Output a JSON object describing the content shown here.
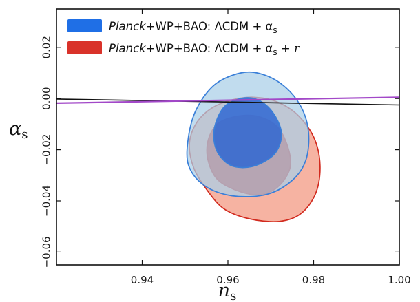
{
  "chart_data": {
    "type": "contour",
    "xlabel": {
      "base": "n",
      "sub": "s"
    },
    "ylabel": {
      "base": "α",
      "sub": "s"
    },
    "xlim": [
      0.92,
      1.0
    ],
    "ylim": [
      -0.065,
      0.035
    ],
    "xticks": [
      {
        "value": 0.94,
        "label": "0.94"
      },
      {
        "value": 0.96,
        "label": "0.96"
      },
      {
        "value": 0.98,
        "label": "0.98"
      },
      {
        "value": 1.0,
        "label": "1.00"
      }
    ],
    "yticks": [
      {
        "value": -0.06,
        "label": "−0.06"
      },
      {
        "value": -0.04,
        "label": "−0.04"
      },
      {
        "value": -0.02,
        "label": "−0.02"
      },
      {
        "value": 0.0,
        "label": "0.00"
      },
      {
        "value": 0.02,
        "label": "0.02"
      }
    ],
    "legend_placement": "top-left",
    "series": [
      {
        "legend": {
          "italic": "Planck",
          "rest": "+WP+BAO: ΛCDM + α",
          "sub": "s",
          "suffix": ""
        },
        "color_outer": "#f6b3a2",
        "color_inner": "#d63a2c",
        "edge_color": "#d22a1e",
        "outer_contour": [
          [
            0.9548,
            -0.035
          ],
          [
            0.952,
            -0.027
          ],
          [
            0.951,
            -0.018
          ],
          [
            0.9525,
            -0.01
          ],
          [
            0.956,
            -0.004
          ],
          [
            0.961,
            -0.0005
          ],
          [
            0.966,
            0.0005
          ],
          [
            0.971,
            -0.001
          ],
          [
            0.976,
            -0.006
          ],
          [
            0.98,
            -0.015
          ],
          [
            0.9815,
            -0.026
          ],
          [
            0.9805,
            -0.037
          ],
          [
            0.977,
            -0.045
          ],
          [
            0.972,
            -0.048
          ],
          [
            0.965,
            -0.047
          ],
          [
            0.959,
            -0.043
          ]
        ],
        "inner_contour": [
          [
            0.9578,
            -0.032
          ],
          [
            0.9555,
            -0.025
          ],
          [
            0.9553,
            -0.017
          ],
          [
            0.9575,
            -0.01
          ],
          [
            0.962,
            -0.007
          ],
          [
            0.967,
            -0.007
          ],
          [
            0.9715,
            -0.011
          ],
          [
            0.974,
            -0.019
          ],
          [
            0.9745,
            -0.027
          ],
          [
            0.972,
            -0.034
          ],
          [
            0.968,
            -0.0375
          ],
          [
            0.963,
            -0.0365
          ]
        ]
      },
      {
        "legend": {
          "italic": "Planck",
          "rest": "+WP+BAO: ΛCDM + α",
          "sub": "s",
          "suffix": ""
        },
        "color_outer": "#a9cfe8",
        "color_inner": "#2a64d3",
        "edge_color": "#3a7fd8",
        "outer_contour": [
          [
            0.9545,
            -0.034
          ],
          [
            0.9508,
            -0.026
          ],
          [
            0.9508,
            -0.015
          ],
          [
            0.9527,
            -0.004
          ],
          [
            0.957,
            0.0055
          ],
          [
            0.963,
            0.01
          ],
          [
            0.968,
            0.0095
          ],
          [
            0.973,
            0.005
          ],
          [
            0.977,
            -0.003
          ],
          [
            0.9788,
            -0.013
          ],
          [
            0.9782,
            -0.024
          ],
          [
            0.975,
            -0.032
          ],
          [
            0.969,
            -0.0375
          ],
          [
            0.961,
            -0.038
          ]
        ],
        "inner_contour": [
          [
            0.96,
            -0.0255
          ],
          [
            0.9573,
            -0.02
          ],
          [
            0.9568,
            -0.012
          ],
          [
            0.959,
            -0.0035
          ],
          [
            0.963,
            0.0
          ],
          [
            0.967,
            -0.0005
          ],
          [
            0.9705,
            -0.0055
          ],
          [
            0.9725,
            -0.0135
          ],
          [
            0.9712,
            -0.021
          ],
          [
            0.9675,
            -0.0255
          ],
          [
            0.9635,
            -0.027
          ]
        ]
      }
    ],
    "lines": [
      {
        "color": "#111111",
        "points": [
          [
            0.92,
            -0.0002
          ],
          [
            1.0,
            -0.0025
          ]
        ]
      },
      {
        "color": "#a248c8",
        "points": [
          [
            0.92,
            -0.0018
          ],
          [
            1.0,
            0.0005
          ]
        ]
      }
    ]
  }
}
